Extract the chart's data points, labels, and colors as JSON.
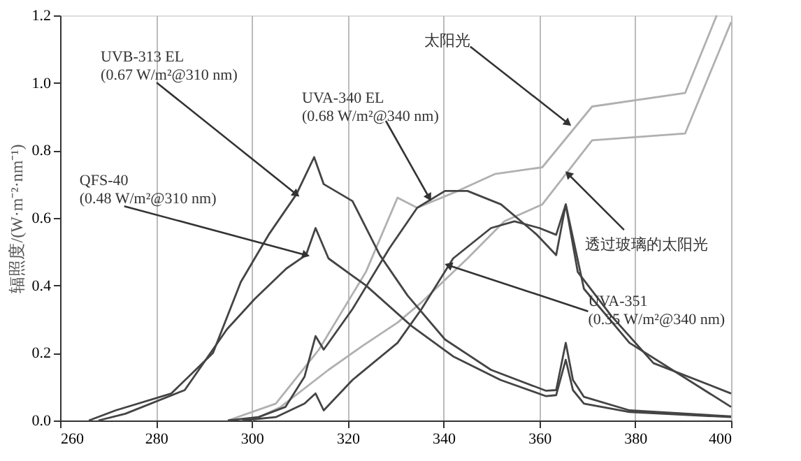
{
  "chart_data": {
    "type": "line",
    "ylabel": "辐照度/(W·m⁻²·nm⁻¹)",
    "xlim": [
      260,
      400
    ],
    "xticks": [
      260,
      280,
      300,
      320,
      340,
      360,
      380,
      400
    ],
    "ylim": [
      0,
      1.2
    ],
    "yticks": [
      {
        "value": 0,
        "label": "0.0"
      },
      {
        "value": 0.2,
        "label": "0.2"
      },
      {
        "value": 0.4,
        "label": "0.4"
      },
      {
        "value": 0.6,
        "label": "0.6"
      },
      {
        "value": 0.8,
        "label": "0.8"
      },
      {
        "value": 1.0,
        "label": "1.0"
      },
      {
        "value": 1.2,
        "label": "1.2"
      }
    ],
    "grid": "x",
    "legend": false,
    "marker": "none",
    "line_style": "solid",
    "series": [
      {
        "color": "#b0b0b0",
        "x": [
          295,
          305,
          314,
          323.8,
          330.4,
          334.5,
          343,
          350.7,
          360.6,
          371,
          390.4,
          397
        ],
        "values": [
          0,
          0.05,
          0.21,
          0.44,
          0.66,
          0.63,
          0.68,
          0.73,
          0.75,
          0.93,
          0.97,
          1.2
        ]
      },
      {
        "color": "#b0b0b0",
        "x": [
          300,
          306,
          316,
          323,
          330.4,
          335.4,
          345,
          352.7,
          360.6,
          371,
          390.4,
          400
        ],
        "values": [
          0,
          0.04,
          0.15,
          0.22,
          0.29,
          0.35,
          0.48,
          0.59,
          0.64,
          0.83,
          0.85,
          1.18
        ]
      },
      {
        "color": "#444444",
        "x": [
          266,
          271.6,
          283.2,
          291.9,
          297.7,
          303.5,
          309.3,
          313,
          315,
          321,
          326.7,
          332.5,
          340.3,
          349.9,
          361.4,
          363.5,
          365.5,
          367,
          369.3,
          378.8,
          400
        ],
        "values": [
          0,
          0.03,
          0.08,
          0.2,
          0.41,
          0.55,
          0.67,
          0.78,
          0.7,
          0.65,
          0.49,
          0.37,
          0.24,
          0.15,
          0.088,
          0.09,
          0.23,
          0.12,
          0.07,
          0.03,
          0.012
        ]
      },
      {
        "color": "#444444",
        "x": [
          268,
          273.6,
          286,
          294.8,
          300.6,
          307.2,
          311.3,
          313.3,
          316,
          323.8,
          333.3,
          342,
          351.9,
          361.4,
          363.5,
          365.5,
          367,
          369.3,
          378.8,
          400
        ],
        "values": [
          0,
          0.02,
          0.09,
          0.27,
          0.36,
          0.45,
          0.49,
          0.57,
          0.48,
          0.4,
          0.28,
          0.19,
          0.12,
          0.072,
          0.075,
          0.18,
          0.09,
          0.05,
          0.025,
          0.01
        ]
      },
      {
        "color": "#444444",
        "x": [
          295,
          301.4,
          307,
          311,
          313.3,
          315,
          321,
          328.7,
          334.5,
          340.3,
          345,
          352,
          359.5,
          363.5,
          365.5,
          368,
          375,
          383.8,
          400
        ],
        "values": [
          0,
          0.01,
          0.04,
          0.13,
          0.25,
          0.21,
          0.33,
          0.51,
          0.63,
          0.68,
          0.68,
          0.64,
          0.55,
          0.49,
          0.64,
          0.44,
          0.31,
          0.17,
          0.08
        ]
      },
      {
        "color": "#444444",
        "x": [
          298,
          305,
          311,
          313.3,
          315,
          321,
          330.4,
          335.4,
          342,
          349.9,
          354.8,
          360,
          363.5,
          365.5,
          369.3,
          378.8,
          400
        ],
        "values": [
          0,
          0.01,
          0.05,
          0.08,
          0.03,
          0.12,
          0.23,
          0.33,
          0.48,
          0.57,
          0.59,
          0.57,
          0.55,
          0.64,
          0.39,
          0.23,
          0.04
        ]
      }
    ],
    "annotations": [
      {
        "text": "UVB-313 EL\n(0.67 W/m²@310 nm)",
        "x": 309.3,
        "y": 0.67
      },
      {
        "text": "QFS-40\n(0.48 W/m²@310 nm)",
        "x": 311.3,
        "y": 0.49
      },
      {
        "text": "UVA-340 EL\n(0.68 W/m²@340 nm)",
        "x": 337,
        "y": 0.66
      },
      {
        "text": "UVA-351\n(0.35 W/m²@340 nm)",
        "x": 341,
        "y": 0.46
      },
      {
        "text": "太阳光",
        "x": 366,
        "y": 0.88
      },
      {
        "text": "透过玻璃的太阳光",
        "x": 366,
        "y": 0.73
      }
    ]
  }
}
